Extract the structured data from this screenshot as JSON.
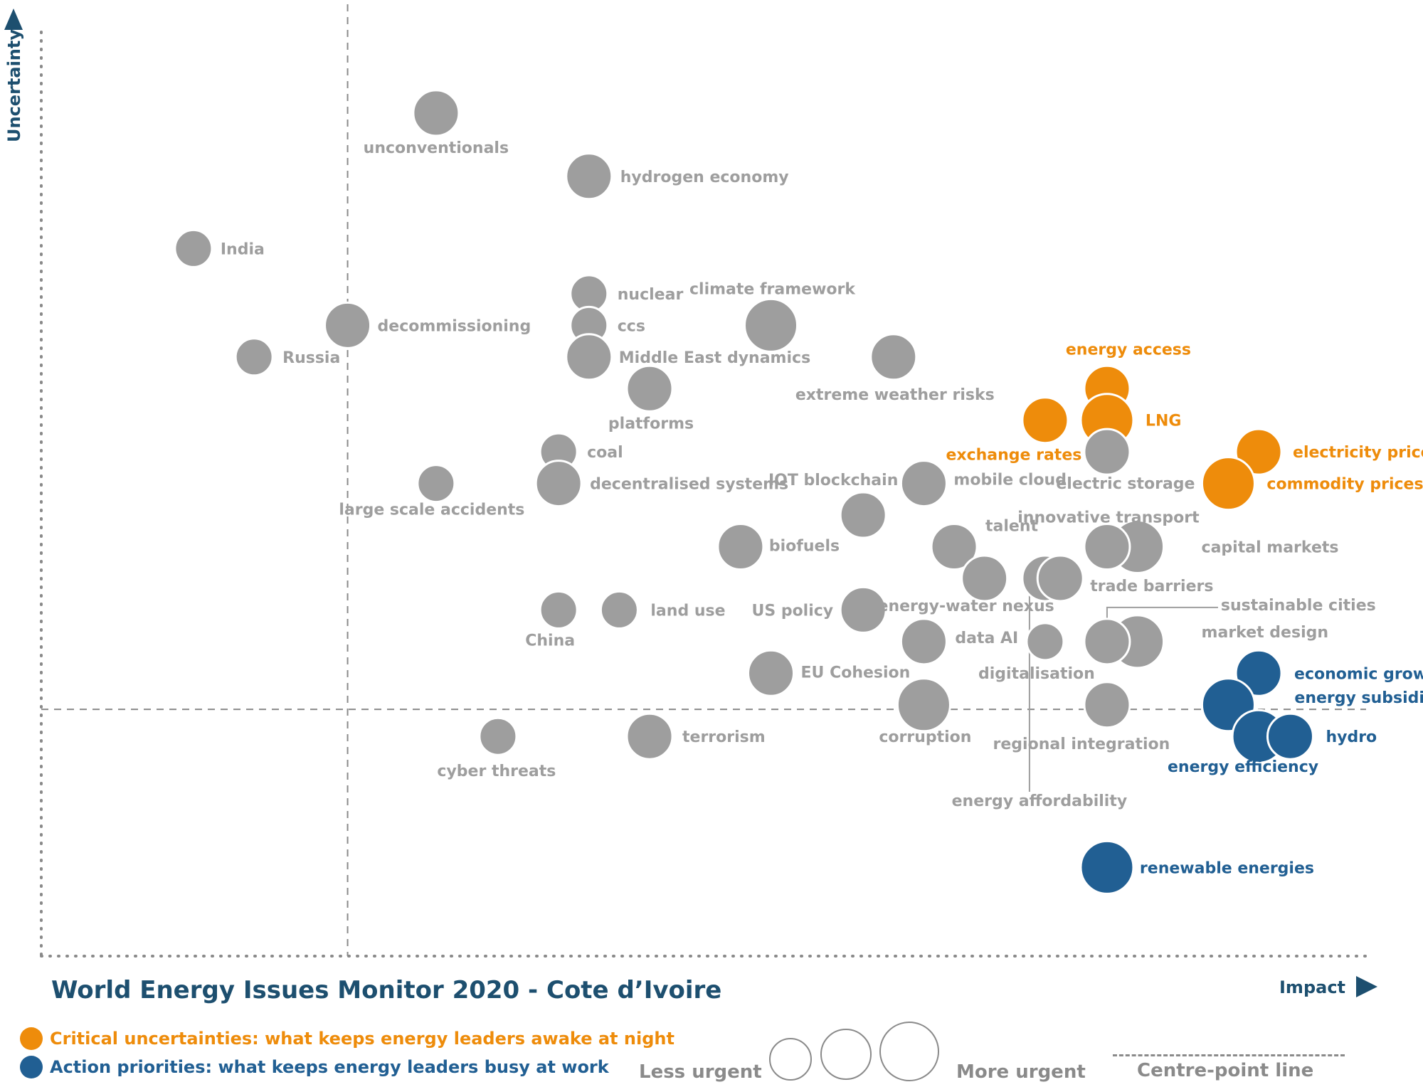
{
  "chart_data": {
    "type": "scatter",
    "title": "World Energy Issues Monitor 2020 - Cote d’Ivoire",
    "xlabel": "Impact",
    "ylabel": "Uncertainty",
    "xlim": [
      0,
      10
    ],
    "ylim": [
      0,
      10
    ],
    "grid": false,
    "centre_point": {
      "x": 1.85,
      "y": 2.7
    },
    "colors": {
      "grey": "#9e9e9e",
      "orange": "#ee8c0b",
      "blue": "#215f93",
      "axis": "#1d4f6f",
      "dotted": "#8a8a8a"
    },
    "points": [
      {
        "label": "unconventionals",
        "x": 2.55,
        "y": 9.3,
        "urgency": 2,
        "category": "grey"
      },
      {
        "label": "hydrogen economy",
        "x": 3.76,
        "y": 8.6,
        "urgency": 2,
        "category": "grey"
      },
      {
        "label": "India",
        "x": 0.63,
        "y": 7.8,
        "urgency": 1,
        "category": "grey"
      },
      {
        "label": "nuclear",
        "x": 3.76,
        "y": 7.3,
        "urgency": 1,
        "category": "grey"
      },
      {
        "label": "climate framework",
        "x": 5.2,
        "y": 6.95,
        "urgency": 3,
        "category": "grey"
      },
      {
        "label": "decommissioning",
        "x": 1.85,
        "y": 6.95,
        "urgency": 2,
        "category": "grey"
      },
      {
        "label": "ccs",
        "x": 3.76,
        "y": 6.95,
        "urgency": 1,
        "category": "grey"
      },
      {
        "label": "Middle East dynamics",
        "x": 3.76,
        "y": 6.6,
        "urgency": 2,
        "category": "grey"
      },
      {
        "label": "Russia",
        "x": 1.11,
        "y": 6.6,
        "urgency": 1,
        "category": "grey"
      },
      {
        "label": "extreme weather risks",
        "x": 6.17,
        "y": 6.6,
        "urgency": 2,
        "category": "grey"
      },
      {
        "label": "platforms",
        "x": 4.24,
        "y": 6.25,
        "urgency": 2,
        "category": "grey"
      },
      {
        "label": "energy access",
        "x": 7.86,
        "y": 6.25,
        "urgency": 2,
        "category": "orange"
      },
      {
        "label": "exchange rates",
        "x": 7.37,
        "y": 5.9,
        "urgency": 2,
        "category": "orange"
      },
      {
        "label": "LNG",
        "x": 7.86,
        "y": 5.9,
        "urgency": 3,
        "category": "orange"
      },
      {
        "label": "coal",
        "x": 3.52,
        "y": 5.55,
        "urgency": 1,
        "category": "grey"
      },
      {
        "label": "electric storage",
        "x": 7.86,
        "y": 5.55,
        "urgency": 2,
        "category": "grey"
      },
      {
        "label": "electricity prices",
        "x": 9.06,
        "y": 5.55,
        "urgency": 2,
        "category": "orange"
      },
      {
        "label": "large scale accidents",
        "x": 2.55,
        "y": 5.2,
        "urgency": 1,
        "category": "grey"
      },
      {
        "label": "decentralised systems",
        "x": 3.52,
        "y": 5.2,
        "urgency": 2,
        "category": "grey"
      },
      {
        "label": "mobile cloud",
        "x": 6.41,
        "y": 5.2,
        "urgency": 2,
        "category": "grey"
      },
      {
        "label": "commodity prices",
        "x": 8.82,
        "y": 5.2,
        "urgency": 3,
        "category": "orange"
      },
      {
        "label": "IOT blockchain",
        "x": 5.93,
        "y": 4.85,
        "urgency": 2,
        "category": "grey"
      },
      {
        "label": "biofuels",
        "x": 4.96,
        "y": 4.5,
        "urgency": 2,
        "category": "grey"
      },
      {
        "label": "talent",
        "x": 6.65,
        "y": 4.5,
        "urgency": 2,
        "category": "grey"
      },
      {
        "label": "capital markets",
        "x": 8.1,
        "y": 4.5,
        "urgency": 3,
        "category": "grey"
      },
      {
        "label": "innovative transport",
        "x": 7.86,
        "y": 4.5,
        "urgency": 2,
        "category": "grey"
      },
      {
        "label": "energy-water nexus",
        "x": 6.89,
        "y": 4.15,
        "urgency": 2,
        "category": "grey"
      },
      {
        "label": "energy affordability",
        "x": 7.37,
        "y": 4.15,
        "urgency": 2,
        "category": "grey"
      },
      {
        "label": "trade barriers",
        "x": 7.49,
        "y": 4.15,
        "urgency": 2,
        "category": "grey"
      },
      {
        "label": "China",
        "x": 3.52,
        "y": 3.8,
        "urgency": 1,
        "category": "grey"
      },
      {
        "label": "land use",
        "x": 4.0,
        "y": 3.8,
        "urgency": 1,
        "category": "grey"
      },
      {
        "label": "US policy",
        "x": 5.93,
        "y": 3.8,
        "urgency": 2,
        "category": "grey"
      },
      {
        "label": "data AI",
        "x": 6.41,
        "y": 3.45,
        "urgency": 2,
        "category": "grey"
      },
      {
        "label": "digitalisation",
        "x": 7.37,
        "y": 3.45,
        "urgency": 1,
        "category": "grey"
      },
      {
        "label": "market design",
        "x": 8.1,
        "y": 3.45,
        "urgency": 3,
        "category": "grey"
      },
      {
        "label": "sustainable cities",
        "x": 7.86,
        "y": 3.45,
        "urgency": 2,
        "category": "grey"
      },
      {
        "label": "EU Cohesion",
        "x": 5.2,
        "y": 3.1,
        "urgency": 2,
        "category": "grey"
      },
      {
        "label": "economic growth",
        "x": 9.06,
        "y": 3.1,
        "urgency": 2,
        "category": "blue"
      },
      {
        "label": "corruption",
        "x": 6.41,
        "y": 2.75,
        "urgency": 3,
        "category": "grey"
      },
      {
        "label": "regional integration",
        "x": 7.86,
        "y": 2.75,
        "urgency": 2,
        "category": "grey"
      },
      {
        "label": "energy subsidies",
        "x": 8.82,
        "y": 2.75,
        "urgency": 3,
        "category": "blue"
      },
      {
        "label": "cyber threats",
        "x": 3.04,
        "y": 2.4,
        "urgency": 1,
        "category": "grey"
      },
      {
        "label": "terrorism",
        "x": 4.24,
        "y": 2.4,
        "urgency": 2,
        "category": "grey"
      },
      {
        "label": "energy efficiency",
        "x": 9.06,
        "y": 2.4,
        "urgency": 3,
        "category": "blue"
      },
      {
        "label": "hydro",
        "x": 9.31,
        "y": 2.4,
        "urgency": 2,
        "category": "blue"
      },
      {
        "label": "renewable energies",
        "x": 7.86,
        "y": 0.95,
        "urgency": 3,
        "category": "blue"
      }
    ]
  },
  "legend": {
    "critical": "Critical uncertainties: what keeps energy leaders awake at night",
    "action": "Action priorities: what keeps energy leaders busy at work",
    "less_urgent": "Less urgent",
    "more_urgent": "More urgent",
    "centre_line": "Centre-point  line"
  }
}
